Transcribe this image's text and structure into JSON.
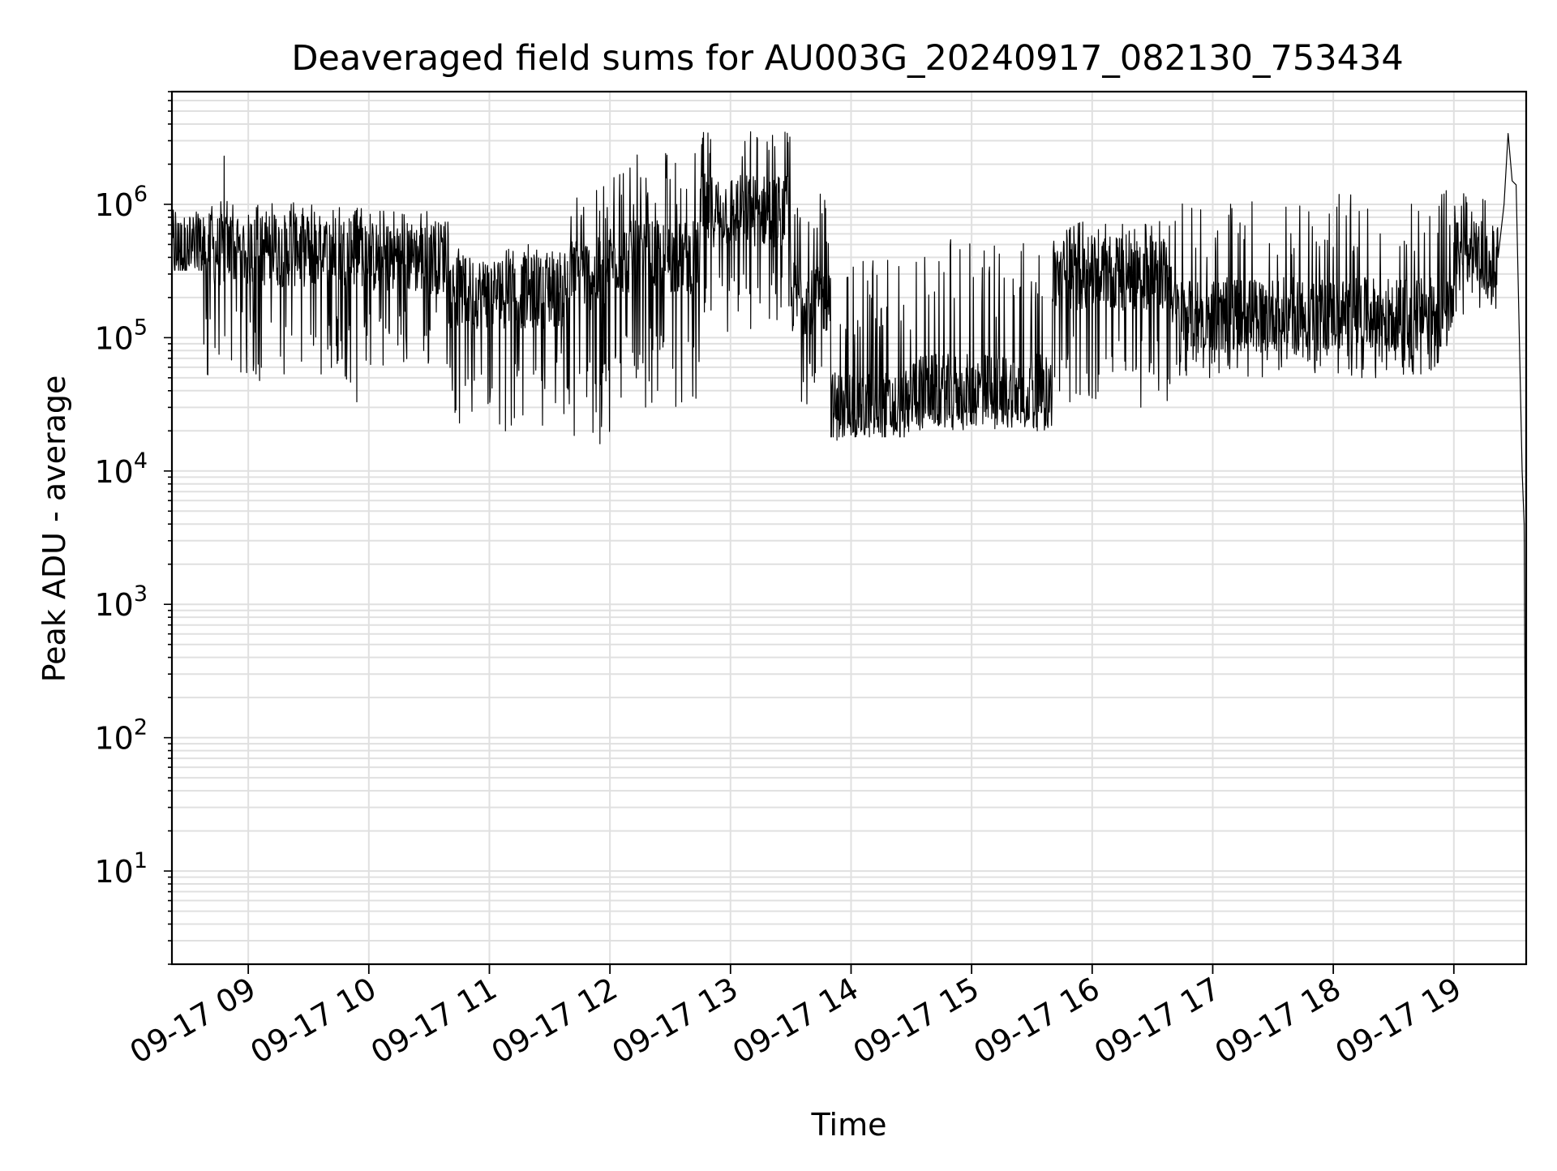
{
  "chart_data": {
    "type": "line",
    "title": "Deaveraged field sums for AU003G_20240917_082130_753434",
    "xlabel": "Time",
    "ylabel": "Peak ADU - average",
    "yscale": "log",
    "ylim": [
      2,
      7000000
    ],
    "xlim": [
      "2024-09-17 08:22",
      "2024-09-17 19:36"
    ],
    "grid": true,
    "line_color": "#000000",
    "grid_color": "#e0e0e0",
    "x_ticks": [
      "09-17 09",
      "09-17 10",
      "09-17 11",
      "09-17 12",
      "09-17 13",
      "09-17 14",
      "09-17 15",
      "09-17 16",
      "09-17 17",
      "09-17 18",
      "09-17 19"
    ],
    "y_ticks": [
      {
        "base": "10",
        "exp": "1",
        "value": 10
      },
      {
        "base": "10",
        "exp": "2",
        "value": 100
      },
      {
        "base": "10",
        "exp": "3",
        "value": 1000
      },
      {
        "base": "10",
        "exp": "4",
        "value": 10000
      },
      {
        "base": "10",
        "exp": "5",
        "value": 100000
      },
      {
        "base": "10",
        "exp": "6",
        "value": 1000000
      }
    ],
    "series": [
      {
        "style": "noisy envelope",
        "segments": [
          {
            "from": "08:22",
            "to": "08:37",
            "median": 450000,
            "low": 320000,
            "high": 950000
          },
          {
            "from": "08:37",
            "to": "09:58",
            "median": 450000,
            "low": 45000,
            "high": 1100000
          },
          {
            "from": "09:58",
            "to": "10:40",
            "median": 400000,
            "low": 60000,
            "high": 900000
          },
          {
            "from": "10:40",
            "to": "11:40",
            "median": 220000,
            "low": 22000,
            "high": 500000
          },
          {
            "from": "11:40",
            "to": "12:00",
            "median": 300000,
            "low": 16000,
            "high": 1500000
          },
          {
            "from": "12:00",
            "to": "12:45",
            "median": 400000,
            "low": 30000,
            "high": 2500000
          },
          {
            "from": "12:45",
            "to": "13:30",
            "median": 900000,
            "low": 100000,
            "high": 3500000
          },
          {
            "from": "13:30",
            "to": "13:50",
            "median": 200000,
            "low": 30000,
            "high": 1200000
          },
          {
            "from": "13:50",
            "to": "14:30",
            "median": 30000,
            "low": 18000,
            "high": 400000
          },
          {
            "from": "14:30",
            "to": "15:40",
            "median": 40000,
            "low": 20000,
            "high": 550000
          },
          {
            "from": "15:40",
            "to": "16:40",
            "median": 300000,
            "low": 30000,
            "high": 750000
          },
          {
            "from": "16:40",
            "to": "19:00",
            "median": 150000,
            "low": 50000,
            "high": 1300000
          },
          {
            "from": "19:00",
            "to": "19:22",
            "median": 400000,
            "low": 150000,
            "high": 1300000
          }
        ],
        "points": [
          {
            "x": "08:22",
            "y": 500000
          },
          {
            "x": "08:37",
            "y": 350000
          },
          {
            "x": "08:48",
            "y": 2300000
          },
          {
            "x": "09:54",
            "y": 33000
          },
          {
            "x": "11:08",
            "y": 20000
          },
          {
            "x": "11:55",
            "y": 16000
          },
          {
            "x": "13:10",
            "y": 3500000
          },
          {
            "x": "13:53",
            "y": 17000
          },
          {
            "x": "19:22",
            "y": 400000
          },
          {
            "x": "19:25",
            "y": 1000000
          },
          {
            "x": "19:27",
            "y": 3400000
          },
          {
            "x": "19:29",
            "y": 1500000
          },
          {
            "x": "19:31",
            "y": 1400000
          },
          {
            "x": "19:34",
            "y": 10000
          },
          {
            "x": "19:35",
            "y": 4000
          },
          {
            "x": "19:36",
            "y": 4
          }
        ]
      }
    ]
  }
}
